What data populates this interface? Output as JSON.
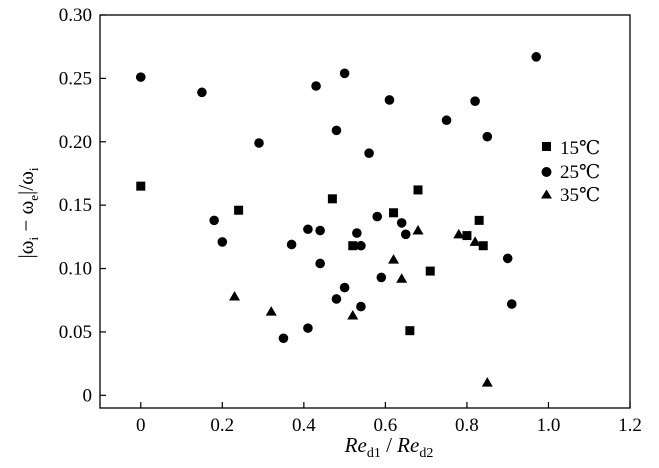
{
  "chart_data": {
    "type": "scatter",
    "title": "",
    "xlabel": {
      "base1": "Re",
      "sub1": "d1",
      "sep": " / ",
      "base2": "Re",
      "sub2": "d2"
    },
    "ylabel": "|ωᵢ − ωₑ|/ωᵢ",
    "xlim": [
      -0.1,
      1.2
    ],
    "ylim": [
      -0.01,
      0.3
    ],
    "xticks": [
      "0",
      "0.2",
      "0.4",
      "0.6",
      "0.8",
      "1.0",
      "1.2"
    ],
    "yticks": [
      "0",
      "0.05",
      "0.10",
      "0.15",
      "0.20",
      "0.25",
      "0.30"
    ],
    "grid": false,
    "legend_position": "right",
    "series": [
      {
        "name": "15℃",
        "marker": "square",
        "color": "#000000",
        "points": [
          {
            "x": 0.0,
            "y": 0.165
          },
          {
            "x": 0.24,
            "y": 0.146
          },
          {
            "x": 0.47,
            "y": 0.155
          },
          {
            "x": 0.52,
            "y": 0.118
          },
          {
            "x": 0.62,
            "y": 0.144
          },
          {
            "x": 0.66,
            "y": 0.051
          },
          {
            "x": 0.68,
            "y": 0.162
          },
          {
            "x": 0.71,
            "y": 0.098
          },
          {
            "x": 0.8,
            "y": 0.126
          },
          {
            "x": 0.83,
            "y": 0.138
          },
          {
            "x": 0.84,
            "y": 0.118
          }
        ]
      },
      {
        "name": "25℃",
        "marker": "circle",
        "color": "#000000",
        "points": [
          {
            "x": 0.0,
            "y": 0.251
          },
          {
            "x": 0.15,
            "y": 0.239
          },
          {
            "x": 0.18,
            "y": 0.138
          },
          {
            "x": 0.2,
            "y": 0.121
          },
          {
            "x": 0.29,
            "y": 0.199
          },
          {
            "x": 0.35,
            "y": 0.045
          },
          {
            "x": 0.37,
            "y": 0.119
          },
          {
            "x": 0.41,
            "y": 0.131
          },
          {
            "x": 0.41,
            "y": 0.053
          },
          {
            "x": 0.43,
            "y": 0.244
          },
          {
            "x": 0.44,
            "y": 0.104
          },
          {
            "x": 0.44,
            "y": 0.13
          },
          {
            "x": 0.48,
            "y": 0.209
          },
          {
            "x": 0.48,
            "y": 0.076
          },
          {
            "x": 0.5,
            "y": 0.254
          },
          {
            "x": 0.5,
            "y": 0.085
          },
          {
            "x": 0.53,
            "y": 0.128
          },
          {
            "x": 0.54,
            "y": 0.118
          },
          {
            "x": 0.54,
            "y": 0.07
          },
          {
            "x": 0.56,
            "y": 0.191
          },
          {
            "x": 0.58,
            "y": 0.141
          },
          {
            "x": 0.59,
            "y": 0.093
          },
          {
            "x": 0.61,
            "y": 0.233
          },
          {
            "x": 0.64,
            "y": 0.136
          },
          {
            "x": 0.65,
            "y": 0.127
          },
          {
            "x": 0.75,
            "y": 0.217
          },
          {
            "x": 0.82,
            "y": 0.232
          },
          {
            "x": 0.85,
            "y": 0.204
          },
          {
            "x": 0.9,
            "y": 0.108
          },
          {
            "x": 0.91,
            "y": 0.072
          },
          {
            "x": 0.97,
            "y": 0.267
          }
        ]
      },
      {
        "name": "35℃",
        "marker": "triangle",
        "color": "#000000",
        "points": [
          {
            "x": 0.23,
            "y": 0.078
          },
          {
            "x": 0.32,
            "y": 0.066
          },
          {
            "x": 0.52,
            "y": 0.063
          },
          {
            "x": 0.62,
            "y": 0.107
          },
          {
            "x": 0.64,
            "y": 0.092
          },
          {
            "x": 0.68,
            "y": 0.13
          },
          {
            "x": 0.78,
            "y": 0.127
          },
          {
            "x": 0.82,
            "y": 0.121
          },
          {
            "x": 0.85,
            "y": 0.01
          }
        ]
      }
    ]
  }
}
